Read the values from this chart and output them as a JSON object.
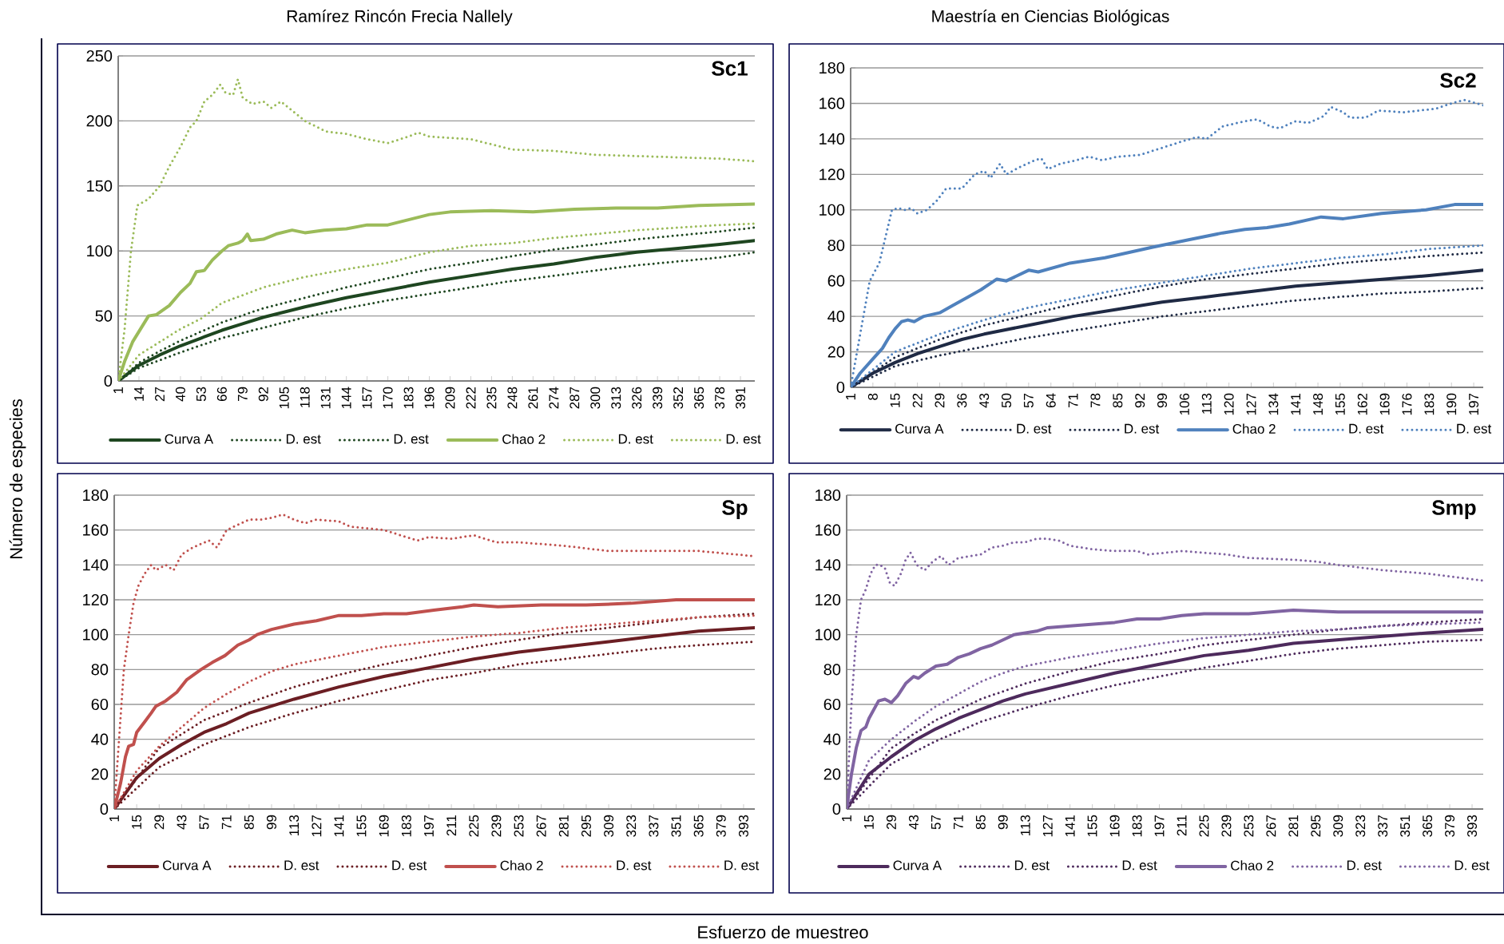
{
  "chart_data": [
    {
      "type": "line",
      "title": "Sc1",
      "ylabel": "Número de especies",
      "annotations": [
        "Ramírez Rincón Frecia Nallely"
      ],
      "xlim": [
        1,
        400
      ],
      "ylim": [
        0,
        250
      ],
      "grid": "y",
      "legend": "bottom",
      "xticks": [
        1,
        14,
        27,
        40,
        53,
        66,
        79,
        92,
        105,
        118,
        131,
        144,
        157,
        170,
        183,
        196,
        209,
        222,
        235,
        248,
        261,
        274,
        287,
        300,
        313,
        326,
        339,
        352,
        365,
        378,
        391
      ],
      "yticks": [
        0,
        50,
        100,
        150,
        200,
        250
      ],
      "series": [
        {
          "name": "Curva A",
          "color": "#1e4620",
          "line_style": "solid",
          "x": [
            1,
            14,
            27,
            40,
            53,
            66,
            79,
            92,
            118,
            144,
            170,
            196,
            222,
            248,
            274,
            300,
            326,
            352,
            378,
            400
          ],
          "values": [
            0,
            12,
            20,
            27,
            33,
            39,
            44,
            49,
            57,
            64,
            70,
            76,
            81,
            86,
            90,
            95,
            99,
            102,
            105,
            108
          ]
        },
        {
          "name": "D. est",
          "color": "#1e4620",
          "line_style": "dotted",
          "x": [
            1,
            14,
            27,
            40,
            66,
            92,
            118,
            144,
            170,
            196,
            222,
            248,
            274,
            300,
            326,
            352,
            378,
            400
          ],
          "values": [
            0,
            14,
            23,
            31,
            45,
            56,
            64,
            72,
            79,
            86,
            91,
            96,
            101,
            105,
            109,
            112,
            115,
            118
          ]
        },
        {
          "name": "D. est",
          "color": "#1e4620",
          "line_style": "dotted",
          "x": [
            1,
            14,
            27,
            40,
            66,
            92,
            118,
            144,
            170,
            196,
            222,
            248,
            274,
            300,
            326,
            352,
            378,
            400
          ],
          "values": [
            0,
            10,
            16,
            22,
            33,
            41,
            49,
            56,
            62,
            67,
            72,
            77,
            81,
            85,
            89,
            92,
            95,
            99
          ]
        },
        {
          "name": "Chao 2",
          "color": "#9bbb59",
          "line_style": "solid",
          "x": [
            1,
            5,
            10,
            14,
            20,
            25,
            33,
            40,
            46,
            50,
            55,
            60,
            66,
            70,
            76,
            79,
            82,
            84,
            92,
            100,
            110,
            118,
            130,
            144,
            157,
            170,
            183,
            196,
            209,
            235,
            261,
            287,
            313,
            339,
            365,
            400
          ],
          "values": [
            0,
            15,
            30,
            38,
            50,
            51,
            58,
            68,
            75,
            84,
            85,
            93,
            100,
            104,
            106,
            108,
            113,
            108,
            109,
            113,
            116,
            114,
            116,
            117,
            120,
            120,
            124,
            128,
            130,
            131,
            130,
            132,
            133,
            133,
            135,
            136
          ]
        },
        {
          "name": "D. est",
          "color": "#9bbb59",
          "line_style": "dotted",
          "x": [
            1,
            5,
            9,
            13,
            20,
            27,
            33,
            40,
            46,
            50,
            55,
            60,
            65,
            68,
            73,
            76,
            79,
            85,
            92,
            97,
            103,
            108,
            118,
            131,
            144,
            157,
            170,
            183,
            189,
            196,
            222,
            248,
            274,
            300,
            326,
            352,
            378,
            400
          ],
          "values": [
            0,
            40,
            100,
            135,
            140,
            150,
            165,
            180,
            195,
            200,
            215,
            220,
            228,
            222,
            220,
            232,
            218,
            213,
            215,
            210,
            215,
            210,
            200,
            192,
            190,
            186,
            183,
            188,
            191,
            188,
            186,
            178,
            177,
            174,
            173,
            172,
            171,
            169
          ]
        },
        {
          "name": "D. est",
          "color": "#9bbb59",
          "line_style": "dotted",
          "x": [
            1,
            14,
            27,
            40,
            53,
            66,
            79,
            92,
            118,
            144,
            170,
            196,
            222,
            248,
            274,
            300,
            326,
            352,
            378,
            400
          ],
          "values": [
            0,
            20,
            30,
            40,
            48,
            60,
            66,
            72,
            80,
            86,
            91,
            99,
            104,
            106,
            110,
            113,
            116,
            118,
            120,
            121
          ]
        }
      ]
    },
    {
      "type": "line",
      "title": "Sc2",
      "annotations": [
        "Maestría en Ciencias Biológicas"
      ],
      "xlim": [
        1,
        200
      ],
      "ylim": [
        0,
        180
      ],
      "grid": "y",
      "legend": "bottom",
      "xticks": [
        1,
        8,
        15,
        22,
        29,
        36,
        43,
        50,
        57,
        64,
        71,
        78,
        85,
        92,
        99,
        106,
        113,
        120,
        127,
        134,
        141,
        148,
        155,
        162,
        169,
        176,
        183,
        190,
        197
      ],
      "yticks": [
        0,
        20,
        40,
        60,
        80,
        100,
        120,
        140,
        160,
        180
      ],
      "series": [
        {
          "name": "Curva A",
          "color": "#1f2a44",
          "line_style": "solid",
          "x": [
            1,
            8,
            15,
            22,
            29,
            36,
            43,
            57,
            71,
            85,
            99,
            113,
            127,
            141,
            155,
            169,
            183,
            200
          ],
          "values": [
            0,
            8,
            14,
            19,
            23,
            27,
            30,
            35,
            40,
            44,
            48,
            51,
            54,
            57,
            59,
            61,
            63,
            66
          ]
        },
        {
          "name": "D. est",
          "color": "#1f2a44",
          "line_style": "dotted",
          "x": [
            1,
            15,
            29,
            43,
            57,
            71,
            85,
            99,
            113,
            127,
            141,
            155,
            169,
            183,
            200
          ],
          "values": [
            0,
            17,
            27,
            35,
            41,
            47,
            52,
            57,
            61,
            64,
            67,
            70,
            72,
            74,
            76
          ]
        },
        {
          "name": "D. est",
          "color": "#1f2a44",
          "line_style": "dotted",
          "x": [
            1,
            15,
            29,
            43,
            57,
            71,
            85,
            99,
            113,
            127,
            141,
            155,
            169,
            183,
            200
          ],
          "values": [
            0,
            12,
            18,
            23,
            28,
            32,
            36,
            40,
            43,
            46,
            49,
            51,
            53,
            54,
            56
          ]
        },
        {
          "name": "Chao 2",
          "color": "#4f81bd",
          "line_style": "solid",
          "x": [
            1,
            4,
            8,
            11,
            13,
            15,
            17,
            19,
            21,
            24,
            29,
            33,
            38,
            42,
            47,
            50,
            57,
            60,
            70,
            81,
            96,
            107,
            118,
            125,
            132,
            139,
            149,
            156,
            168,
            182,
            191,
            200
          ],
          "values": [
            0,
            8,
            16,
            22,
            28,
            33,
            37,
            38,
            37,
            40,
            42,
            46,
            51,
            55,
            61,
            60,
            66,
            65,
            70,
            73,
            79,
            83,
            87,
            89,
            90,
            92,
            96,
            95,
            98,
            100,
            103,
            103
          ]
        },
        {
          "name": "D. est",
          "color": "#4f81bd",
          "line_style": "dotted",
          "x": [
            1,
            3,
            5,
            7,
            10,
            12,
            14,
            16,
            18,
            20,
            22,
            25,
            28,
            31,
            36,
            40,
            43,
            45,
            48,
            50,
            54,
            59,
            61,
            63,
            67,
            72,
            76,
            80,
            85,
            92,
            99,
            106,
            110,
            113,
            118,
            125,
            129,
            133,
            136,
            141,
            145,
            150,
            152,
            156,
            158,
            163,
            167,
            175,
            185,
            190,
            194,
            200
          ],
          "values": [
            0,
            20,
            40,
            60,
            70,
            85,
            100,
            101,
            100,
            101,
            98,
            100,
            105,
            112,
            112,
            120,
            122,
            118,
            126,
            120,
            124,
            128,
            129,
            123,
            126,
            128,
            130,
            128,
            130,
            131,
            135,
            139,
            141,
            140,
            147,
            150,
            151,
            147,
            146,
            150,
            149,
            153,
            158,
            155,
            152,
            152,
            156,
            155,
            157,
            160,
            162,
            159
          ]
        },
        {
          "name": "D. est",
          "color": "#4f81bd",
          "line_style": "dotted",
          "x": [
            1,
            8,
            15,
            29,
            43,
            57,
            71,
            85,
            99,
            113,
            127,
            141,
            155,
            169,
            183,
            200
          ],
          "values": [
            0,
            10,
            20,
            30,
            38,
            45,
            50,
            55,
            59,
            63,
            67,
            70,
            73,
            75,
            78,
            80
          ]
        }
      ]
    },
    {
      "type": "line",
      "title": "Sp",
      "xlabel": "Esfuerzo de muestreo",
      "xlim": [
        1,
        400
      ],
      "ylim": [
        0,
        180
      ],
      "grid": "y",
      "legend": "bottom",
      "xticks": [
        1,
        15,
        29,
        43,
        57,
        71,
        85,
        99,
        113,
        127,
        141,
        155,
        169,
        183,
        197,
        211,
        225,
        239,
        253,
        267,
        281,
        295,
        309,
        323,
        337,
        351,
        365,
        379,
        393
      ],
      "yticks": [
        0,
        20,
        40,
        60,
        80,
        100,
        120,
        140,
        160,
        180
      ],
      "series": [
        {
          "name": "Curva A",
          "color": "#6b1e23",
          "line_style": "solid",
          "x": [
            1,
            15,
            29,
            43,
            57,
            71,
            85,
            99,
            113,
            141,
            169,
            197,
            225,
            253,
            281,
            309,
            337,
            365,
            400
          ],
          "values": [
            0,
            18,
            29,
            37,
            44,
            49,
            55,
            59,
            63,
            70,
            76,
            81,
            86,
            90,
            93,
            96,
            99,
            102,
            104
          ]
        },
        {
          "name": "D. est",
          "color": "#6b1e23",
          "line_style": "dotted",
          "x": [
            1,
            29,
            57,
            85,
            113,
            141,
            169,
            197,
            225,
            253,
            281,
            309,
            337,
            365,
            400
          ],
          "values": [
            0,
            35,
            51,
            61,
            70,
            77,
            83,
            88,
            93,
            97,
            101,
            104,
            107,
            110,
            112
          ]
        },
        {
          "name": "D. est",
          "color": "#6b1e23",
          "line_style": "dotted",
          "x": [
            1,
            29,
            57,
            85,
            113,
            141,
            169,
            197,
            225,
            253,
            281,
            309,
            337,
            365,
            400
          ],
          "values": [
            0,
            24,
            37,
            47,
            55,
            62,
            68,
            74,
            78,
            83,
            86,
            89,
            92,
            94,
            96
          ]
        },
        {
          "name": "Chao 2",
          "color": "#c0504d",
          "line_style": "solid",
          "x": [
            1,
            5,
            8,
            10,
            13,
            15,
            20,
            24,
            27,
            33,
            40,
            46,
            55,
            62,
            70,
            78,
            85,
            90,
            99,
            113,
            127,
            141,
            155,
            169,
            183,
            200,
            218,
            225,
            240,
            267,
            295,
            323,
            351,
            380,
            400
          ],
          "values": [
            0,
            15,
            30,
            36,
            37,
            44,
            50,
            55,
            59,
            62,
            67,
            74,
            80,
            84,
            88,
            94,
            97,
            100,
            103,
            106,
            108,
            111,
            111,
            112,
            112,
            114,
            116,
            117,
            116,
            117,
            117,
            118,
            120,
            120,
            120
          ]
        },
        {
          "name": "D. est",
          "color": "#c0504d",
          "line_style": "dotted",
          "x": [
            1,
            4,
            7,
            10,
            13,
            16,
            20,
            24,
            27,
            33,
            38,
            43,
            50,
            55,
            60,
            65,
            71,
            78,
            85,
            92,
            99,
            106,
            113,
            120,
            127,
            141,
            148,
            169,
            183,
            190,
            197,
            211,
            225,
            239,
            253,
            281,
            309,
            337,
            365,
            400
          ],
          "values": [
            0,
            40,
            80,
            100,
            118,
            128,
            135,
            140,
            137,
            140,
            137,
            146,
            150,
            152,
            154,
            150,
            160,
            163,
            166,
            166,
            167,
            169,
            166,
            164,
            166,
            165,
            162,
            160,
            156,
            154,
            156,
            155,
            157,
            153,
            153,
            151,
            148,
            148,
            148,
            145
          ]
        },
        {
          "name": "D. est",
          "color": "#c0504d",
          "line_style": "dotted",
          "x": [
            1,
            15,
            29,
            43,
            57,
            71,
            85,
            99,
            113,
            141,
            169,
            197,
            225,
            253,
            281,
            309,
            337,
            365,
            400
          ],
          "values": [
            0,
            22,
            36,
            47,
            58,
            66,
            73,
            79,
            83,
            88,
            93,
            96,
            99,
            101,
            104,
            106,
            108,
            110,
            111
          ]
        }
      ]
    },
    {
      "type": "line",
      "title": "Smp",
      "xlim": [
        1,
        400
      ],
      "ylim": [
        0,
        180
      ],
      "grid": "y",
      "legend": "bottom",
      "xticks": [
        1,
        15,
        29,
        43,
        57,
        71,
        85,
        99,
        113,
        127,
        141,
        155,
        169,
        183,
        197,
        211,
        225,
        239,
        253,
        267,
        281,
        295,
        309,
        323,
        337,
        351,
        365,
        379,
        393
      ],
      "yticks": [
        0,
        20,
        40,
        60,
        80,
        100,
        120,
        140,
        160,
        180
      ],
      "series": [
        {
          "name": "Curva A",
          "color": "#4d2a5c",
          "line_style": "solid",
          "x": [
            1,
            15,
            29,
            43,
            57,
            71,
            85,
            99,
            113,
            141,
            169,
            197,
            225,
            253,
            281,
            309,
            337,
            365,
            400
          ],
          "values": [
            0,
            20,
            30,
            39,
            46,
            52,
            57,
            62,
            66,
            72,
            78,
            83,
            88,
            91,
            95,
            97,
            99,
            101,
            103
          ]
        },
        {
          "name": "D. est",
          "color": "#4d2a5c",
          "line_style": "dotted",
          "x": [
            1,
            29,
            57,
            85,
            113,
            141,
            169,
            197,
            225,
            253,
            281,
            309,
            337,
            365,
            400
          ],
          "values": [
            0,
            35,
            51,
            63,
            72,
            79,
            85,
            89,
            94,
            97,
            100,
            103,
            105,
            107,
            109
          ]
        },
        {
          "name": "D. est",
          "color": "#4d2a5c",
          "line_style": "dotted",
          "x": [
            1,
            29,
            57,
            85,
            113,
            141,
            169,
            197,
            225,
            253,
            281,
            309,
            337,
            365,
            400
          ],
          "values": [
            0,
            26,
            39,
            50,
            58,
            65,
            71,
            76,
            81,
            85,
            89,
            92,
            94,
            96,
            97
          ]
        },
        {
          "name": "Chao 2",
          "color": "#8064a2",
          "line_style": "solid",
          "x": [
            1,
            4,
            7,
            10,
            13,
            15,
            18,
            21,
            25,
            29,
            33,
            38,
            43,
            46,
            50,
            57,
            64,
            71,
            78,
            85,
            92,
            99,
            106,
            113,
            120,
            127,
            141,
            155,
            169,
            183,
            197,
            211,
            225,
            253,
            281,
            309,
            337,
            365,
            400
          ],
          "values": [
            0,
            20,
            35,
            45,
            47,
            52,
            57,
            62,
            63,
            61,
            65,
            72,
            76,
            75,
            78,
            82,
            83,
            87,
            89,
            92,
            94,
            97,
            100,
            101,
            102,
            104,
            105,
            106,
            107,
            109,
            109,
            111,
            112,
            112,
            114,
            113,
            113,
            113,
            113
          ]
        },
        {
          "name": "D. est",
          "color": "#8064a2",
          "line_style": "dotted",
          "x": [
            1,
            4,
            7,
            10,
            13,
            16,
            19,
            22,
            25,
            28,
            31,
            35,
            38,
            41,
            45,
            50,
            55,
            60,
            65,
            71,
            78,
            85,
            92,
            99,
            106,
            113,
            120,
            127,
            134,
            141,
            155,
            169,
            183,
            190,
            211,
            239,
            253,
            281,
            295,
            309,
            337,
            365,
            400
          ],
          "values": [
            0,
            60,
            100,
            120,
            126,
            135,
            140,
            140,
            138,
            130,
            128,
            135,
            143,
            147,
            140,
            137,
            142,
            145,
            140,
            144,
            145,
            146,
            150,
            151,
            153,
            153,
            155,
            155,
            154,
            151,
            149,
            148,
            148,
            146,
            148,
            146,
            144,
            143,
            142,
            140,
            137,
            135,
            131
          ]
        },
        {
          "name": "D. est",
          "color": "#8064a2",
          "line_style": "dotted",
          "x": [
            1,
            15,
            29,
            43,
            57,
            71,
            85,
            99,
            113,
            141,
            169,
            197,
            225,
            253,
            281,
            309,
            337,
            365,
            400
          ],
          "values": [
            0,
            28,
            40,
            50,
            59,
            66,
            73,
            78,
            82,
            87,
            91,
            95,
            98,
            100,
            102,
            103,
            105,
            106,
            107
          ]
        }
      ]
    }
  ]
}
